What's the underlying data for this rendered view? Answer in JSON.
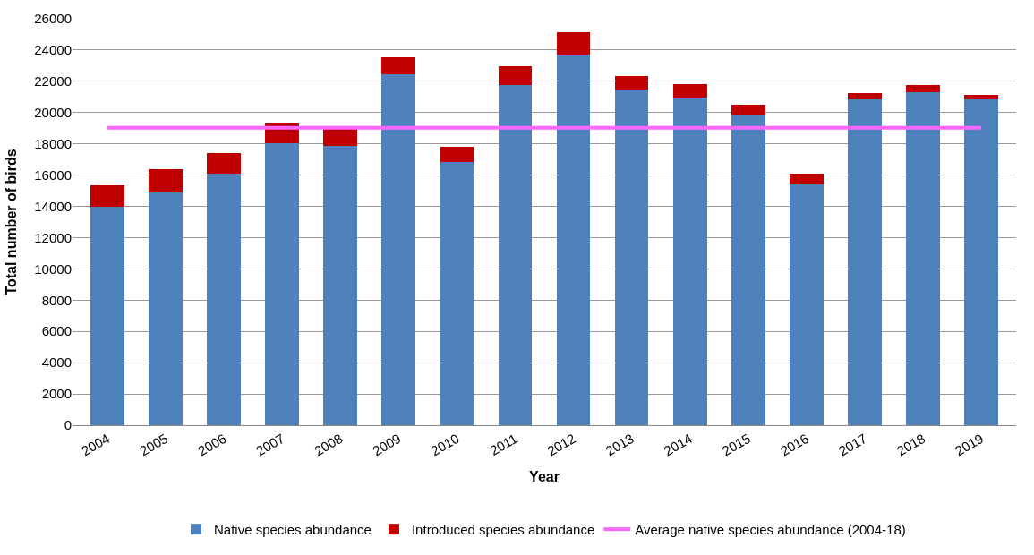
{
  "chart_data": {
    "type": "bar",
    "stacked": true,
    "xlabel": "Year",
    "ylabel": "Total number of birds",
    "categories": [
      "2004",
      "2005",
      "2006",
      "2007",
      "2008",
      "2009",
      "2010",
      "2011",
      "2012",
      "2013",
      "2014",
      "2015",
      "2016",
      "2017",
      "2018",
      "2019"
    ],
    "series": [
      {
        "name": "Native species abundance",
        "color": "#4f81bd",
        "values": [
          14000,
          14870,
          16100,
          18060,
          17840,
          22440,
          16850,
          21780,
          23730,
          21490,
          20960,
          19900,
          15430,
          20840,
          21330,
          20840
        ]
      },
      {
        "name": "Introduced species abundance",
        "color": "#c00000",
        "values": [
          1330,
          1520,
          1290,
          1270,
          1150,
          1120,
          950,
          1160,
          1410,
          820,
          880,
          630,
          690,
          400,
          410,
          280
        ]
      }
    ],
    "ref_lines": [
      {
        "axis": "y",
        "value": 19030,
        "label": "Average native species abundance (2004-18)",
        "color": "#ff66ff",
        "line_style": "solid"
      }
    ],
    "ylim": [
      0,
      26000
    ],
    "yticks": [
      0,
      2000,
      4000,
      6000,
      8000,
      10000,
      12000,
      14000,
      16000,
      18000,
      20000,
      22000,
      24000,
      26000
    ],
    "grid": "y",
    "legend": "bottom"
  }
}
